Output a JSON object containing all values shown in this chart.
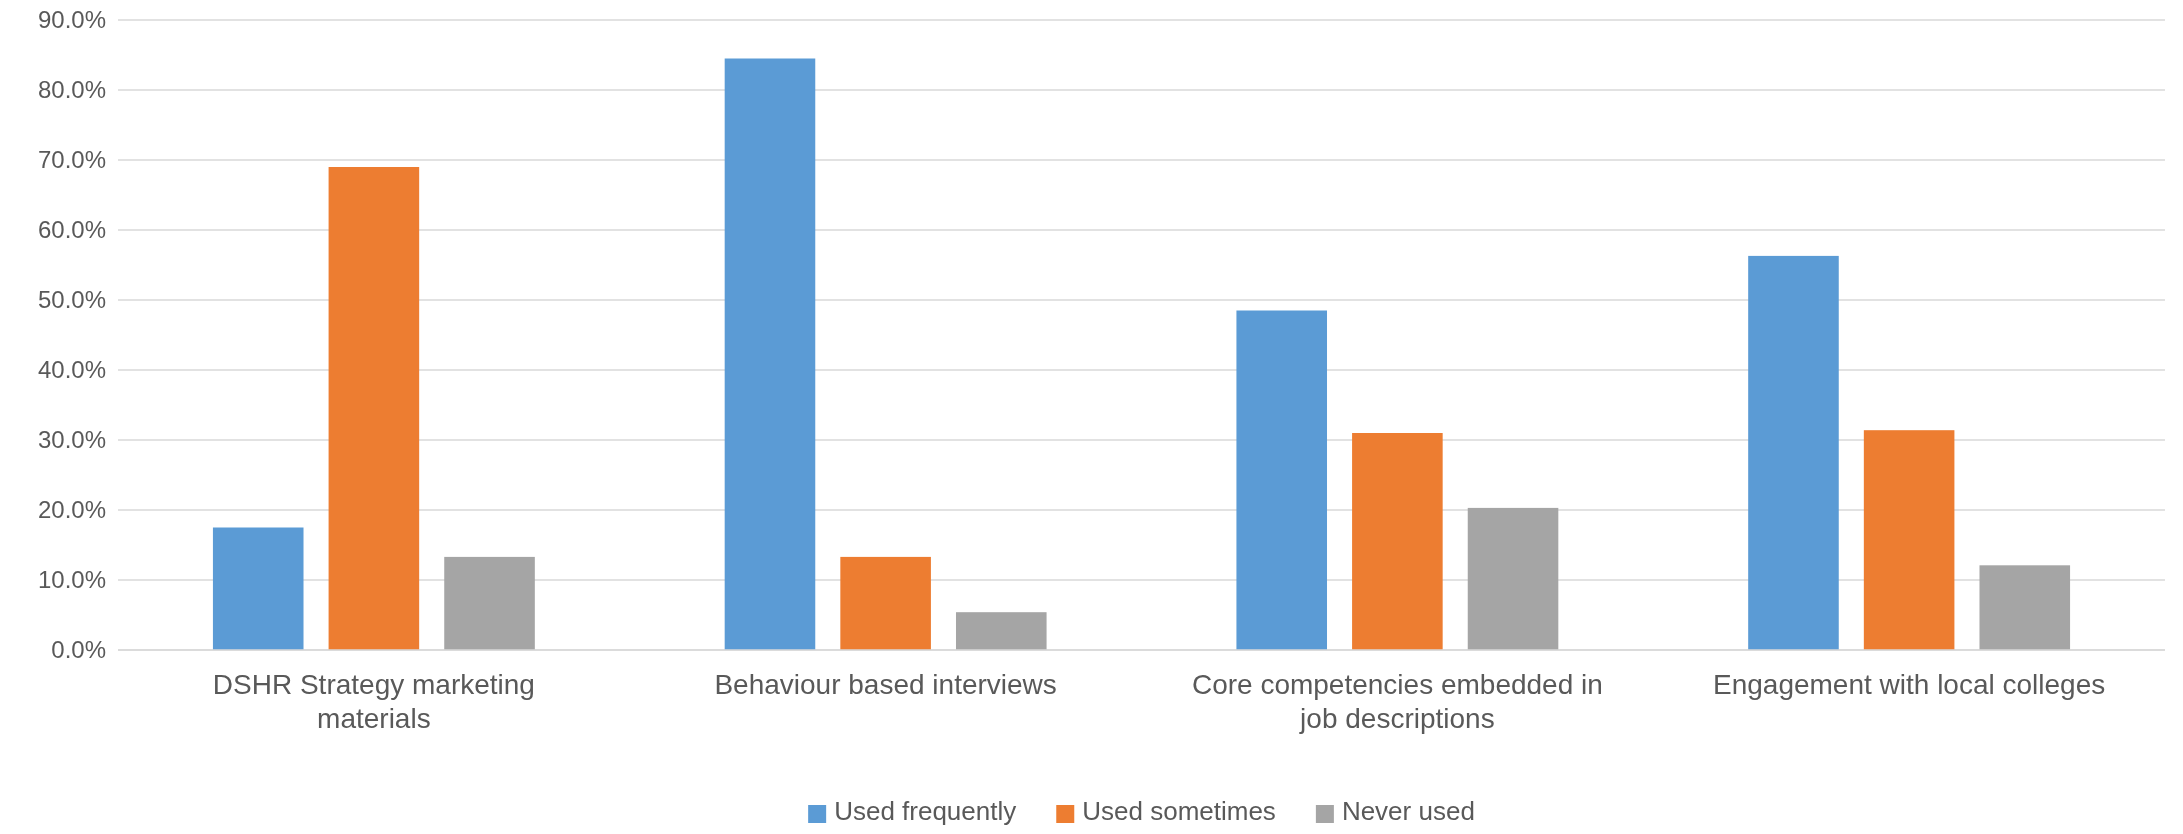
{
  "chart_data": {
    "type": "bar",
    "categories": [
      "DSHR Strategy marketing materials",
      "Behaviour based interviews",
      "Core competencies embedded in job descriptions",
      "Engagement with local colleges"
    ],
    "series": [
      {
        "name": "Used frequently",
        "color": "#5b9bd5",
        "values": [
          17.5,
          84.5,
          48.5,
          56.3
        ]
      },
      {
        "name": "Used sometimes",
        "color": "#ed7d31",
        "values": [
          69.0,
          13.3,
          31.0,
          31.4
        ]
      },
      {
        "name": "Never used",
        "color": "#a5a5a5",
        "values": [
          13.3,
          5.4,
          20.3,
          12.1
        ]
      }
    ],
    "ylim": [
      0,
      90
    ],
    "yticks": [
      {
        "value": 0,
        "label": "0.0%"
      },
      {
        "value": 10,
        "label": "10.0%"
      },
      {
        "value": 20,
        "label": "20.0%"
      },
      {
        "value": 30,
        "label": "30.0%"
      },
      {
        "value": 40,
        "label": "40.0%"
      },
      {
        "value": 50,
        "label": "50.0%"
      },
      {
        "value": 60,
        "label": "60.0%"
      },
      {
        "value": 70,
        "label": "70.0%"
      },
      {
        "value": 80,
        "label": "80.0%"
      },
      {
        "value": 90,
        "label": "90.0%"
      }
    ],
    "grid": "y",
    "legend": "bottom"
  }
}
